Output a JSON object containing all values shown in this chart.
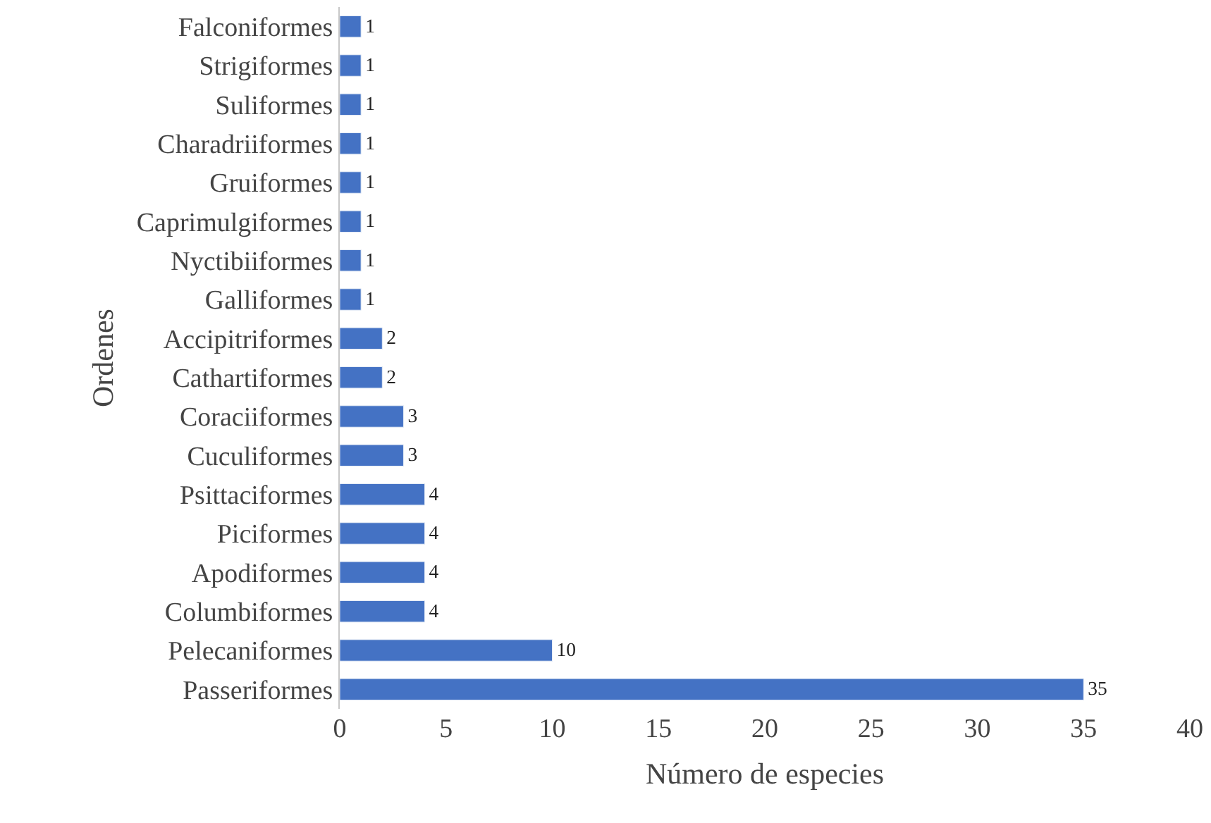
{
  "chart_data": {
    "type": "bar",
    "orientation": "horizontal",
    "xlabel": "Número de especies",
    "ylabel": "Ordenes",
    "categories": [
      "Falconiformes",
      "Strigiformes",
      "Suliformes",
      "Charadriiformes",
      "Gruiformes",
      "Caprimulgiformes",
      "Nyctibiiformes",
      "Galliformes",
      "Accipitriformes",
      "Cathartiformes",
      "Coraciiformes",
      "Cuculiformes",
      "Psittaciformes",
      "Piciformes",
      "Apodiformes",
      "Columbiformes",
      "Pelecaniformes",
      "Passeriformes"
    ],
    "values": [
      1,
      1,
      1,
      1,
      1,
      1,
      1,
      1,
      2,
      2,
      3,
      3,
      4,
      4,
      4,
      4,
      10,
      35
    ],
    "color": "#4472c4",
    "xlim": [
      0,
      40
    ],
    "xticks": [
      0,
      5,
      10,
      15,
      20,
      25,
      30,
      35,
      40
    ],
    "data_labels": true,
    "legend": false
  }
}
